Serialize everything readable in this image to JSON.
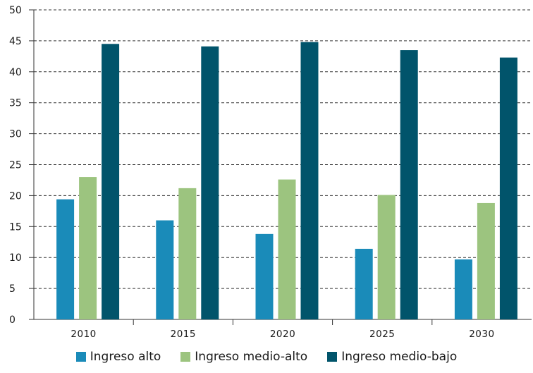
{
  "chart_data": {
    "type": "bar",
    "title": "",
    "xlabel": "",
    "ylabel": "",
    "categories": [
      "2010",
      "2015",
      "2020",
      "2025",
      "2030"
    ],
    "ylim": [
      0,
      50
    ],
    "yticks": [
      "0",
      "5",
      "10",
      "15",
      "20",
      "25",
      "30",
      "35",
      "40",
      "45",
      "50"
    ],
    "grid": "horizontal-dashed",
    "legend_position": "bottom",
    "series": [
      {
        "name": "Ingreso alto",
        "color": "#1a8bb9",
        "values": [
          19.4,
          16.0,
          13.8,
          11.4,
          9.7
        ]
      },
      {
        "name": "Ingreso medio-alto",
        "color": "#9cc47f",
        "values": [
          23.0,
          21.2,
          22.6,
          20.1,
          18.8
        ]
      },
      {
        "name": "Ingreso medio-bajo",
        "color": "#01546b",
        "values": [
          44.5,
          44.1,
          44.8,
          43.5,
          42.3
        ]
      }
    ]
  }
}
